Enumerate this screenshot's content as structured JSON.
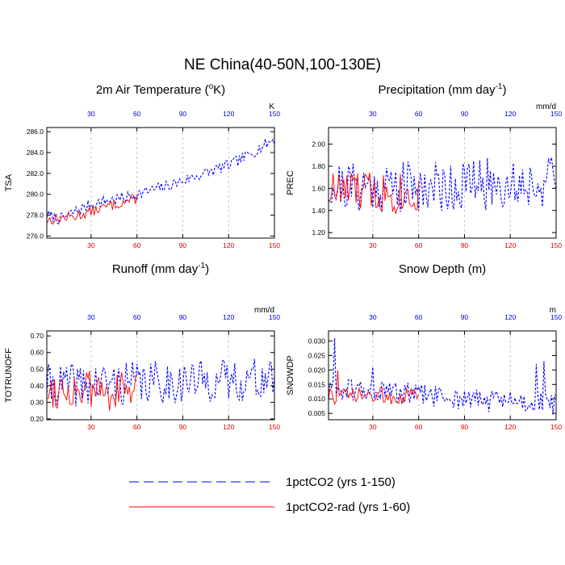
{
  "figure": {
    "title": "NE China(40-50N,100-130E)",
    "legend": [
      {
        "label": "1pctCO2 (yrs 1-150)",
        "color": "#0000ff",
        "style": "dashed"
      },
      {
        "label": "1pctCO2-rad (yrs 1-60)",
        "color": "#ff0000",
        "style": "solid"
      }
    ]
  },
  "chart_data": [
    {
      "type": "line",
      "title": "2m Air Temperature (°K)",
      "ylabel": "TSA",
      "unit": "K",
      "xlim": [
        1,
        150
      ],
      "ylim": [
        275.8,
        286.4
      ],
      "yticks": [
        276.0,
        278.0,
        280.0,
        282.0,
        284.0,
        286.0
      ],
      "ytick_labels": [
        "276.0",
        "278.0",
        "280.0",
        "282.0",
        "284.0",
        "286.0"
      ],
      "xticks": [
        30,
        60,
        90,
        120,
        150
      ],
      "grid_x": true,
      "series": [
        {
          "name": "1pctCO2 (yrs 1-150)",
          "color": "#0000ff",
          "dash": "3,2",
          "len": 150,
          "knots": [
            [
              1,
              278.0
            ],
            [
              10,
              277.6
            ],
            [
              20,
              278.4
            ],
            [
              30,
              279.0
            ],
            [
              40,
              279.4
            ],
            [
              50,
              279.6
            ],
            [
              60,
              280.0
            ],
            [
              70,
              280.4
            ],
            [
              80,
              280.8
            ],
            [
              90,
              281.3
            ],
            [
              100,
              281.8
            ],
            [
              110,
              282.3
            ],
            [
              120,
              282.8
            ],
            [
              130,
              283.5
            ],
            [
              140,
              284.4
            ],
            [
              150,
              285.3
            ]
          ],
          "amp": 0.55,
          "seed": 7
        },
        {
          "name": "1pctCO2-rad (yrs 1-60)",
          "color": "#ff0000",
          "dash": "",
          "len": 60,
          "knots": [
            [
              1,
              277.5
            ],
            [
              20,
              277.9
            ],
            [
              40,
              278.8
            ],
            [
              60,
              279.6
            ]
          ],
          "amp": 0.5,
          "seed": 13
        }
      ]
    },
    {
      "type": "line",
      "title": "Precipitation (mm day-1)",
      "ylabel": "PREC",
      "unit": "mm/d",
      "xlim": [
        1,
        150
      ],
      "ylim": [
        1.15,
        2.15
      ],
      "yticks": [
        1.2,
        1.4,
        1.6,
        1.8,
        2.0
      ],
      "ytick_labels": [
        "1.20",
        "1.40",
        "1.60",
        "1.80",
        "2.00"
      ],
      "xticks": [
        30,
        60,
        90,
        120,
        150
      ],
      "grid_x": true,
      "series": [
        {
          "name": "1pctCO2 (yrs 1-150)",
          "color": "#0000ff",
          "dash": "3,2",
          "len": 150,
          "knots": [
            [
              1,
              1.62
            ],
            [
              75,
              1.62
            ],
            [
              150,
              1.66
            ]
          ],
          "amp": 0.24,
          "seed": 21
        },
        {
          "name": "1pctCO2-rad (yrs 1-60)",
          "color": "#ff0000",
          "dash": "",
          "len": 60,
          "knots": [
            [
              1,
              1.58
            ],
            [
              60,
              1.56
            ]
          ],
          "amp": 0.2,
          "seed": 33
        }
      ]
    },
    {
      "type": "line",
      "title": "Runoff (mm day-1)",
      "ylabel": "TOTRUNOFF",
      "unit": "mm/d",
      "xlim": [
        1,
        150
      ],
      "ylim": [
        0.195,
        0.73
      ],
      "yticks": [
        0.2,
        0.3,
        0.4,
        0.5,
        0.6,
        0.7
      ],
      "ytick_labels": [
        "0.20",
        "0.30",
        "0.40",
        "0.50",
        "0.60",
        "0.70"
      ],
      "xticks": [
        30,
        60,
        90,
        120,
        150
      ],
      "grid_x": true,
      "series": [
        {
          "name": "1pctCO2 (yrs 1-150)",
          "color": "#0000ff",
          "dash": "3,2",
          "len": 150,
          "knots": [
            [
              1,
              0.4
            ],
            [
              75,
              0.42
            ],
            [
              150,
              0.44
            ]
          ],
          "amp": 0.13,
          "seed": 41
        },
        {
          "name": "1pctCO2-rad (yrs 1-60)",
          "color": "#ff0000",
          "dash": "",
          "len": 60,
          "knots": [
            [
              1,
              0.38
            ],
            [
              60,
              0.36
            ]
          ],
          "amp": 0.12,
          "seed": 55
        }
      ]
    },
    {
      "type": "line",
      "title": "Snow Depth (m)",
      "ylabel": "SNOWDP",
      "unit": "m",
      "xlim": [
        1,
        150
      ],
      "ylim": [
        0.0028,
        0.0335
      ],
      "yticks": [
        0.005,
        0.01,
        0.015,
        0.02,
        0.025,
        0.03
      ],
      "ytick_labels": [
        "0.005",
        "0.010",
        "0.015",
        "0.020",
        "0.025",
        "0.030"
      ],
      "xticks": [
        30,
        60,
        90,
        120,
        150
      ],
      "grid_x": true,
      "series": [
        {
          "name": "1pctCO2 (yrs 1-150)",
          "color": "#0000ff",
          "dash": "3,2",
          "len": 150,
          "knots": [
            [
              1,
              0.013
            ],
            [
              20,
              0.013
            ],
            [
              60,
              0.0115
            ],
            [
              100,
              0.0095
            ],
            [
              150,
              0.0085
            ]
          ],
          "amp": 0.004,
          "seed": 61,
          "spikes": [
            [
              5,
              0.031
            ],
            [
              30,
              0.021
            ],
            [
              137,
              0.022
            ],
            [
              142,
              0.023
            ]
          ]
        },
        {
          "name": "1pctCO2-rad (yrs 1-60)",
          "color": "#ff0000",
          "dash": "",
          "len": 60,
          "knots": [
            [
              1,
              0.011
            ],
            [
              60,
              0.011
            ]
          ],
          "amp": 0.003,
          "seed": 73,
          "spikes": [
            [
              7,
              0.02
            ]
          ]
        }
      ]
    }
  ]
}
